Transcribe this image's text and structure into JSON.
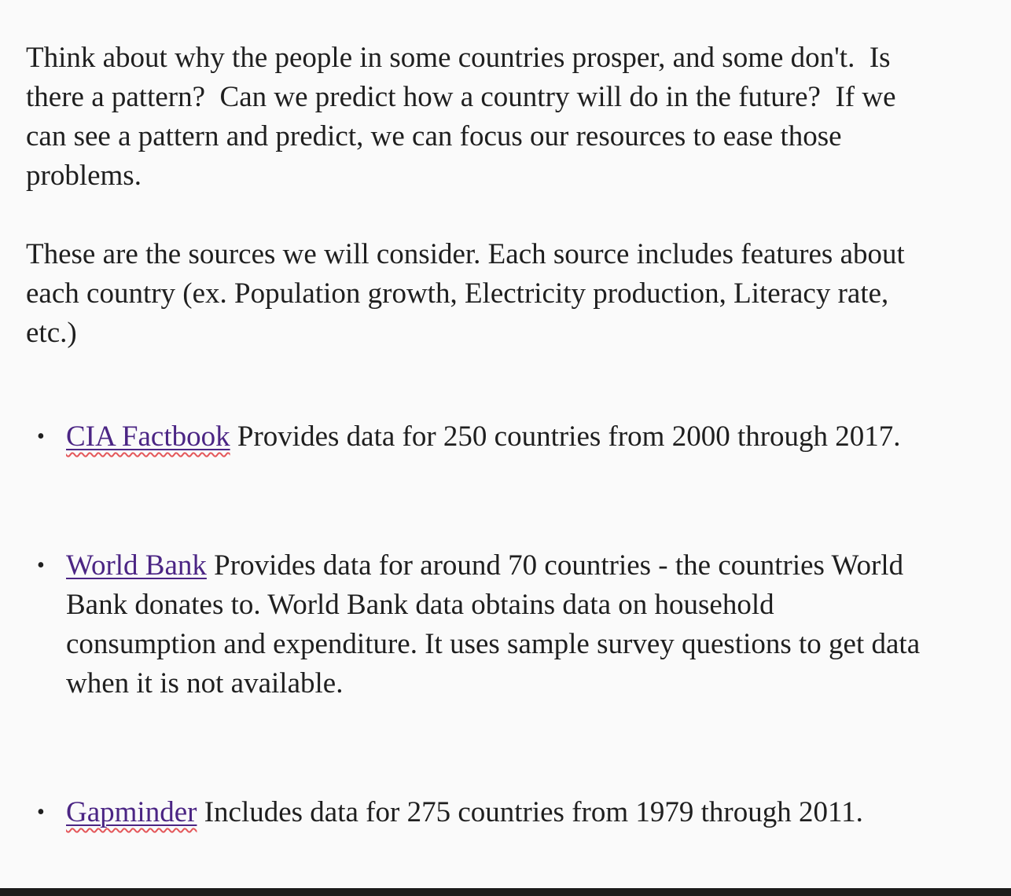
{
  "paragraphs": [
    "Think about why the people in some countries prosper, and some don't.  Is there a pattern?  Can we predict how a country will do in the future?  If we can see a pattern and predict, we can focus our resources to ease those problems.",
    "These are the sources we will consider. Each source includes features about each country (ex. Population growth, Electricity production, Literacy rate, etc.)"
  ],
  "sources": [
    {
      "link_text": "CIA Factbook",
      "description": " Provides data for 250 countries from 2000 through 2017."
    },
    {
      "link_text": "World Bank",
      "description": " Provides data for around 70 countries - the countries World Bank donates to. World Bank data obtains data on household consumption and expenditure. It uses sample survey questions to get data when it is not available."
    },
    {
      "link_text": "Gapminder",
      "description": " Includes data for 275 countries from 1979 through 2011."
    }
  ],
  "bullet_symbol": "•",
  "colors": {
    "link": "#4b2584",
    "spellcheck_underline": "#e4575a",
    "text": "#1f1f1f",
    "background": "#fafafa"
  }
}
